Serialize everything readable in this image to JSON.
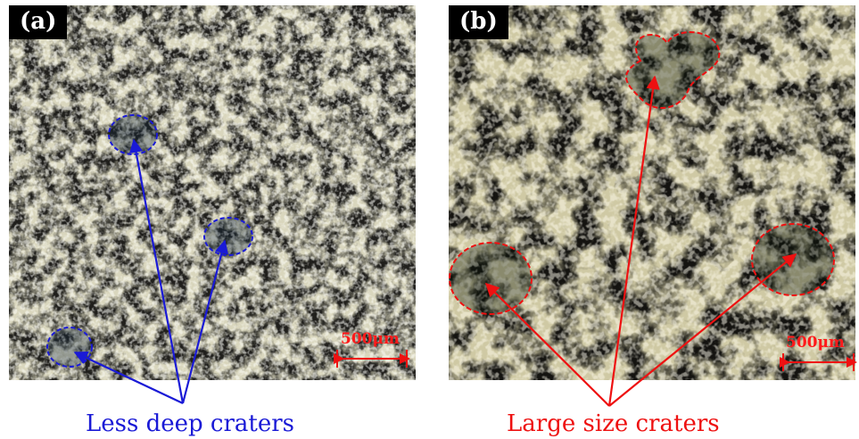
{
  "panels": [
    {
      "label": "(a)",
      "scale_bar": "500μm",
      "caption": "Less deep craters",
      "annotation_color": "#1a1ad6"
    },
    {
      "label": "(b)",
      "scale_bar": "500μm",
      "caption": "Large size craters",
      "annotation_color": "#ee1111"
    }
  ]
}
